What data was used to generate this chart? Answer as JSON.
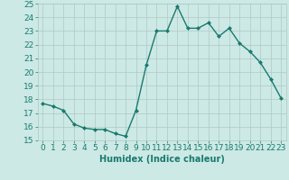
{
  "x": [
    0,
    1,
    2,
    3,
    4,
    5,
    6,
    7,
    8,
    9,
    10,
    11,
    12,
    13,
    14,
    15,
    16,
    17,
    18,
    19,
    20,
    21,
    22,
    23
  ],
  "y": [
    17.7,
    17.5,
    17.2,
    16.2,
    15.9,
    15.8,
    15.8,
    15.5,
    15.3,
    17.2,
    20.5,
    23.0,
    23.0,
    24.8,
    23.2,
    23.2,
    23.6,
    22.6,
    23.2,
    22.1,
    21.5,
    20.7,
    19.5,
    18.1
  ],
  "line_color": "#1a7a6e",
  "marker": "D",
  "marker_size": 2,
  "line_width": 1.0,
  "background_color": "#cce9e5",
  "grid_color": "#b0c8c5",
  "xlabel": "Humidex (Indice chaleur)",
  "xlim": [
    -0.5,
    23.5
  ],
  "ylim": [
    15,
    25
  ],
  "yticks": [
    15,
    16,
    17,
    18,
    19,
    20,
    21,
    22,
    23,
    24,
    25
  ],
  "xticks": [
    0,
    1,
    2,
    3,
    4,
    5,
    6,
    7,
    8,
    9,
    10,
    11,
    12,
    13,
    14,
    15,
    16,
    17,
    18,
    19,
    20,
    21,
    22,
    23
  ],
  "tick_color": "#1a7a6e",
  "xlabel_color": "#1a7a6e",
  "xlabel_fontsize": 7,
  "tick_fontsize": 6.5
}
